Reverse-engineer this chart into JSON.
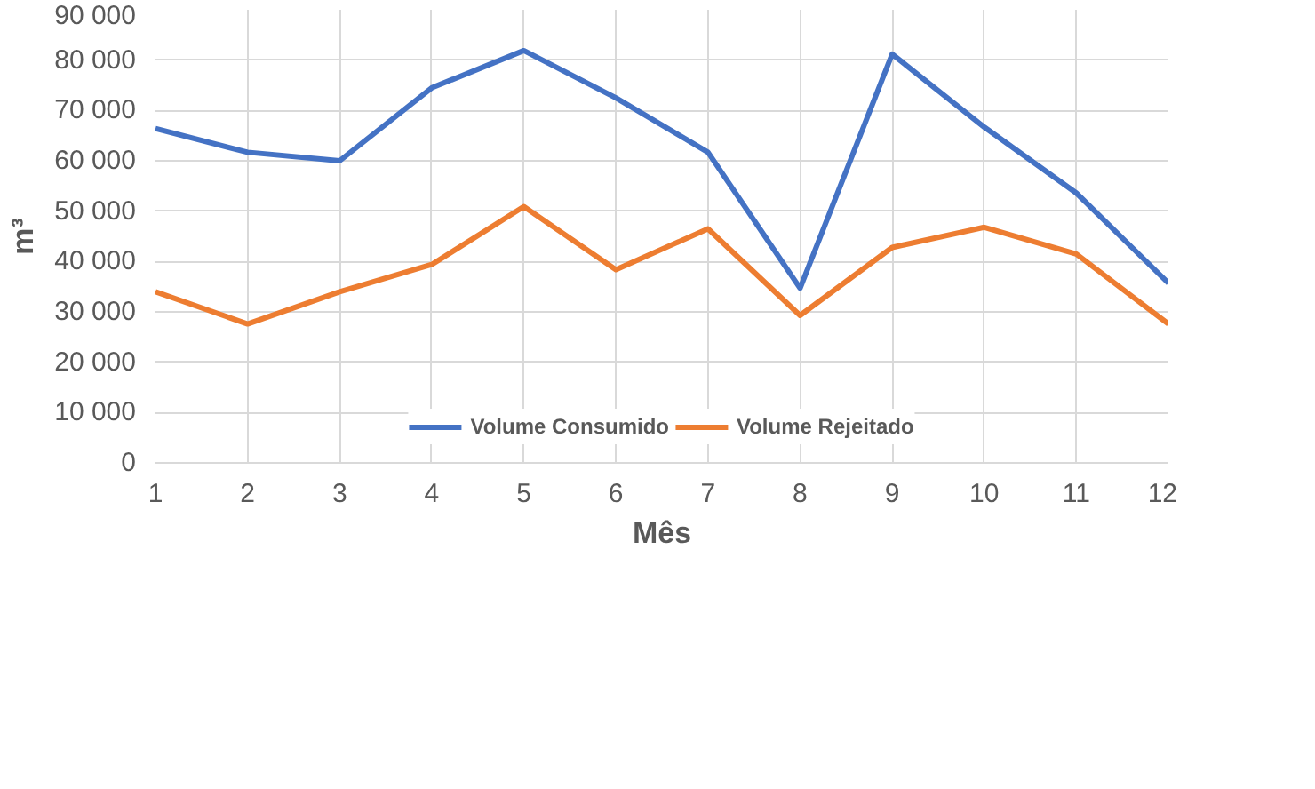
{
  "chart_data": {
    "type": "line",
    "xlabel": "Mês",
    "ylabel": "m³",
    "x": [
      1,
      2,
      3,
      4,
      5,
      6,
      7,
      8,
      9,
      10,
      11,
      12
    ],
    "series": [
      {
        "name": "Volume Consumido",
        "color": "#4472c4",
        "values": [
          66400,
          61700,
          60000,
          74500,
          81900,
          72500,
          61700,
          34700,
          81200,
          66700,
          53600,
          35700
        ]
      },
      {
        "name": "Volume Rejeitado",
        "color": "#ed7d31",
        "values": [
          34000,
          27600,
          34000,
          39400,
          50900,
          38400,
          46500,
          29300,
          42800,
          46800,
          41500,
          27600
        ]
      }
    ],
    "xlim": [
      1,
      12
    ],
    "xticks": [
      1,
      2,
      3,
      4,
      5,
      6,
      7,
      8,
      9,
      10,
      11,
      12
    ],
    "ylim": [
      0,
      90000
    ],
    "yticks": [
      {
        "value": 0,
        "label": "0"
      },
      {
        "value": 10000,
        "label": "10 000"
      },
      {
        "value": 20000,
        "label": "20 000"
      },
      {
        "value": 30000,
        "label": "30 000"
      },
      {
        "value": 40000,
        "label": "40 000"
      },
      {
        "value": 50000,
        "label": "50 000"
      },
      {
        "value": 60000,
        "label": "60 000"
      },
      {
        "value": 70000,
        "label": "70 000"
      },
      {
        "value": 80000,
        "label": "80 000"
      },
      {
        "value": 90000,
        "label": "90 000"
      }
    ],
    "grid": true,
    "legend": "bottom",
    "line_style": "solid",
    "marker": "none"
  }
}
